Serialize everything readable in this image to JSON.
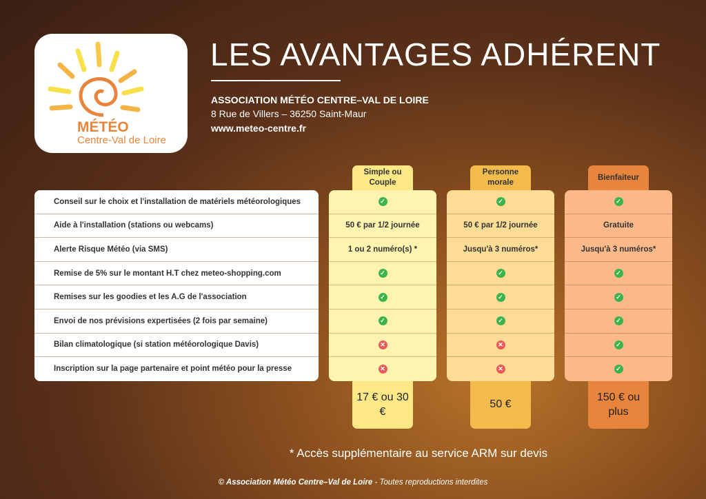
{
  "logo": {
    "line1": "MÉTÉO",
    "line2": "Centre-Val de Loire"
  },
  "header": {
    "title": "LES AVANTAGES ADHÉRENT",
    "org": "ASSOCIATION MÉTÉO CENTRE–VAL DE LOIRE",
    "address": "8 Rue de Villers – 36250 Saint-Maur",
    "website": "www.meteo-centre.fr"
  },
  "colors": {
    "col1": "#fff3b0",
    "col1_tab": "#fde885",
    "col2": "#fddc95",
    "col2_tab": "#f3bb4c",
    "col3": "#fdb98a",
    "col3_tab": "#e8843c",
    "check": "#3cb44b",
    "cross": "#e85a5a"
  },
  "features": [
    "Conseil sur le choix et l'installation de matériels météorologiques",
    "Aide à l'installation (stations ou webcams)",
    "Alerte Risque Météo (via SMS)",
    "Remise de 5% sur le montant H.T chez meteo-shopping.com",
    "Remises sur les goodies et les A.G de l'association",
    "Envoi de nos prévisions expertisées (2 fois par semaine)",
    "Bilan climatologique (si station météorologique Davis)",
    "Inscription sur la page partenaire et point météo pour la presse"
  ],
  "plans": [
    {
      "name": "Simple ou Couple",
      "price": "17 € ou 30 €",
      "cells": [
        "check",
        "50 € par 1/2 journée",
        "1 ou 2 numéro(s) *",
        "check",
        "check",
        "check",
        "cross",
        "cross"
      ]
    },
    {
      "name": "Personne morale",
      "price": "50 €",
      "cells": [
        "check",
        "50 € par 1/2 journée",
        "Jusqu'à 3 numéros*",
        "check",
        "check",
        "check",
        "cross",
        "cross"
      ]
    },
    {
      "name": "Bienfaiteur",
      "price": "150 € ou plus",
      "cells": [
        "check",
        "Gratuite",
        "Jusqu'à 3 numéros*",
        "check",
        "check",
        "check",
        "check",
        "check"
      ]
    }
  ],
  "footnote": "* Accès supplémentaire au service ARM sur devis",
  "copyright": {
    "bold": "© Association Météo Centre–Val de Loire",
    "rest": " - Toutes reproductions interdites"
  }
}
